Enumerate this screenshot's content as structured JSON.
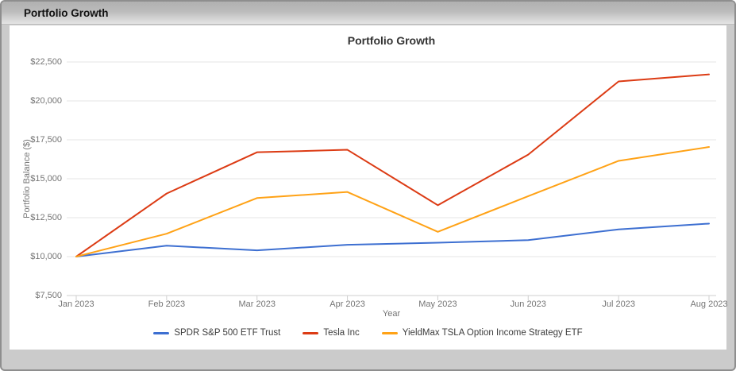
{
  "window": {
    "title": "Portfolio Growth"
  },
  "chart_data": {
    "type": "line",
    "title": "Portfolio Growth",
    "xlabel": "Year",
    "ylabel": "Portfolio Balance ($)",
    "categories": [
      "Jan 2023",
      "Feb 2023",
      "Mar 2023",
      "Apr 2023",
      "May 2023",
      "Jun 2023",
      "Jul 2023",
      "Aug 2023"
    ],
    "series": [
      {
        "name": "SPDR S&P 500 ETF Trust",
        "color": "#3d6fd1",
        "values": [
          10000,
          10700,
          10400,
          10760,
          10890,
          11060,
          11750,
          12120
        ]
      },
      {
        "name": "Tesla Inc",
        "color": "#dc3b14",
        "values": [
          10000,
          14050,
          16700,
          16860,
          13300,
          16550,
          21250,
          21700
        ]
      },
      {
        "name": "YieldMax TSLA Option Income Strategy ETF",
        "color": "#ffa216",
        "values": [
          10000,
          11470,
          13760,
          14150,
          11590,
          13880,
          16150,
          17040
        ]
      }
    ],
    "y_ticks": [
      7500,
      10000,
      12500,
      15000,
      17500,
      20000,
      22500
    ],
    "y_tick_labels": [
      "$7,500",
      "$10,000",
      "$12,500",
      "$15,000",
      "$17,500",
      "$20,000",
      "$22,500"
    ],
    "ylim": [
      7500,
      22500
    ],
    "grid": true,
    "legend_position": "bottom",
    "colors": {
      "gridline": "#e6e6e6",
      "baseline": "#cfcfcf",
      "tick_mark": "#cfcfcf",
      "axis_text": "#757575",
      "title_text": "#333333",
      "legend_text": "#3d3d3d"
    }
  }
}
